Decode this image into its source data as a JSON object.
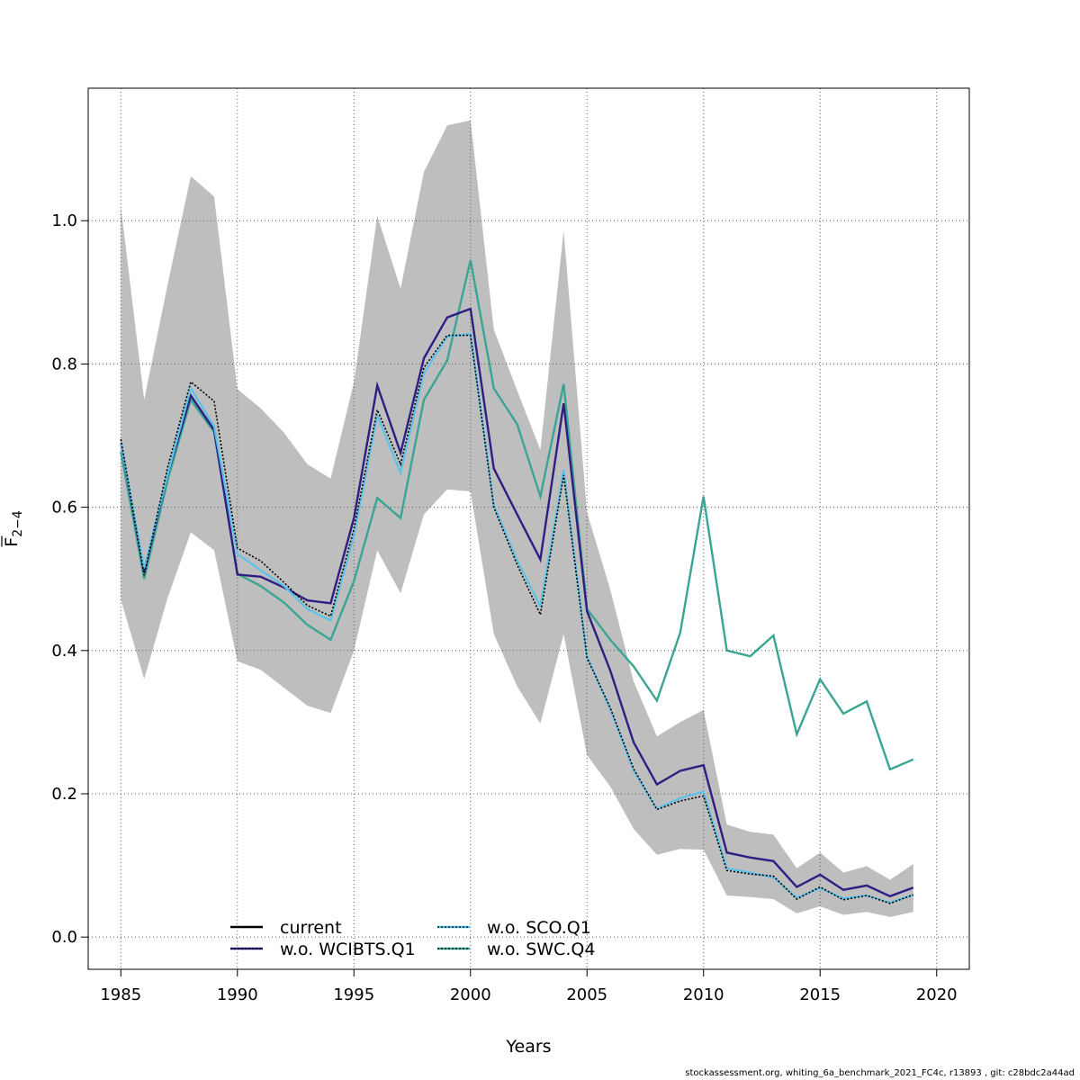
{
  "chart_data": {
    "type": "line",
    "xlabel": "Years",
    "ylabel_main": "F",
    "ylabel_sub": "2−4",
    "xlim": [
      1983.6,
      2021.4
    ],
    "ylim": [
      -0.045,
      1.185
    ],
    "xticks": [
      1985,
      1990,
      1995,
      2000,
      2005,
      2010,
      2015,
      2020
    ],
    "yticks": [
      0.0,
      0.2,
      0.4,
      0.6,
      0.8,
      1.0
    ],
    "ytick_labels": [
      "0.0",
      "0.2",
      "0.4",
      "0.6",
      "0.8",
      "1.0"
    ],
    "grid": true,
    "legend_position": "bottom-left",
    "colors": {
      "band": "#bebebe",
      "current": "#000000",
      "wcibts": "#2e1e84",
      "sco": "#5bc2e8",
      "swc": "#3aa593"
    },
    "x": [
      1985,
      1986,
      1987,
      1988,
      1989,
      1990,
      1991,
      1992,
      1993,
      1994,
      1995,
      1996,
      1997,
      1998,
      1999,
      2000,
      2001,
      2002,
      2003,
      2004,
      2005,
      2006,
      2007,
      2008,
      2009,
      2010,
      2011,
      2012,
      2013,
      2014,
      2015,
      2016,
      2017,
      2018,
      2019
    ],
    "confidence_band": {
      "upper": [
        1.02,
        0.75,
        0.91,
        1.062,
        1.034,
        0.765,
        0.738,
        0.704,
        0.66,
        0.64,
        0.775,
        1.007,
        0.905,
        1.068,
        1.133,
        1.14,
        0.848,
        0.763,
        0.68,
        0.986,
        0.593,
        0.485,
        0.357,
        0.28,
        0.3,
        0.317,
        0.157,
        0.147,
        0.143,
        0.096,
        0.118,
        0.09,
        0.099,
        0.08,
        0.102
      ],
      "lower": [
        0.471,
        0.36,
        0.473,
        0.565,
        0.54,
        0.385,
        0.373,
        0.348,
        0.323,
        0.313,
        0.4,
        0.54,
        0.48,
        0.59,
        0.625,
        0.622,
        0.423,
        0.35,
        0.298,
        0.423,
        0.254,
        0.21,
        0.151,
        0.115,
        0.123,
        0.122,
        0.058,
        0.056,
        0.053,
        0.033,
        0.043,
        0.031,
        0.035,
        0.028,
        0.035
      ]
    },
    "series": [
      {
        "name": "current",
        "key": "current",
        "dashed": false,
        "values": [
          0.695,
          0.505,
          0.655,
          0.775,
          0.748,
          0.543,
          0.525,
          0.495,
          0.463,
          0.448,
          0.57,
          0.736,
          0.66,
          0.795,
          0.84,
          0.84,
          0.6,
          0.52,
          0.45,
          0.645,
          0.39,
          0.32,
          0.235,
          0.178,
          0.19,
          0.197,
          0.093,
          0.088,
          0.085,
          0.053,
          0.07,
          0.052,
          0.058,
          0.047,
          0.059
        ]
      },
      {
        "name": "w.o. WCIBTS.Q1",
        "key": "wcibts",
        "dashed": false,
        "values": [
          0.69,
          0.51,
          0.645,
          0.756,
          0.708,
          0.506,
          0.503,
          0.488,
          0.47,
          0.466,
          0.585,
          0.77,
          0.676,
          0.808,
          0.865,
          0.877,
          0.654,
          0.59,
          0.527,
          0.745,
          0.455,
          0.372,
          0.272,
          0.213,
          0.232,
          0.24,
          0.118,
          0.111,
          0.106,
          0.07,
          0.087,
          0.066,
          0.072,
          0.057,
          0.069
        ]
      },
      {
        "name": "w.o. SCO.Q1",
        "key": "sco",
        "dashed": true,
        "values": [
          0.69,
          0.515,
          0.645,
          0.766,
          0.713,
          0.535,
          0.512,
          0.49,
          0.458,
          0.442,
          0.56,
          0.728,
          0.648,
          0.787,
          0.838,
          0.842,
          0.603,
          0.526,
          0.462,
          0.652,
          0.392,
          0.318,
          0.232,
          0.179,
          0.194,
          0.203,
          0.096,
          0.09,
          0.083,
          0.055,
          0.068,
          0.054,
          0.058,
          0.048,
          0.059
        ]
      },
      {
        "name": "w.o. SWC.Q4",
        "key": "swc",
        "dashed": false,
        "values": [
          0.678,
          0.5,
          0.637,
          0.75,
          0.705,
          0.507,
          0.49,
          0.467,
          0.436,
          0.415,
          0.497,
          0.613,
          0.585,
          0.75,
          0.805,
          0.945,
          0.766,
          0.716,
          0.615,
          0.772,
          0.458,
          0.415,
          0.378,
          0.33,
          0.425,
          0.615,
          0.4,
          0.392,
          0.421,
          0.283,
          0.36,
          0.312,
          0.329,
          0.234,
          0.248
        ]
      }
    ]
  },
  "footer": "stockassessment.org, whiting_6a_benchmark_2021_FC4c, r13893 , git: c28bdc2a44ad"
}
